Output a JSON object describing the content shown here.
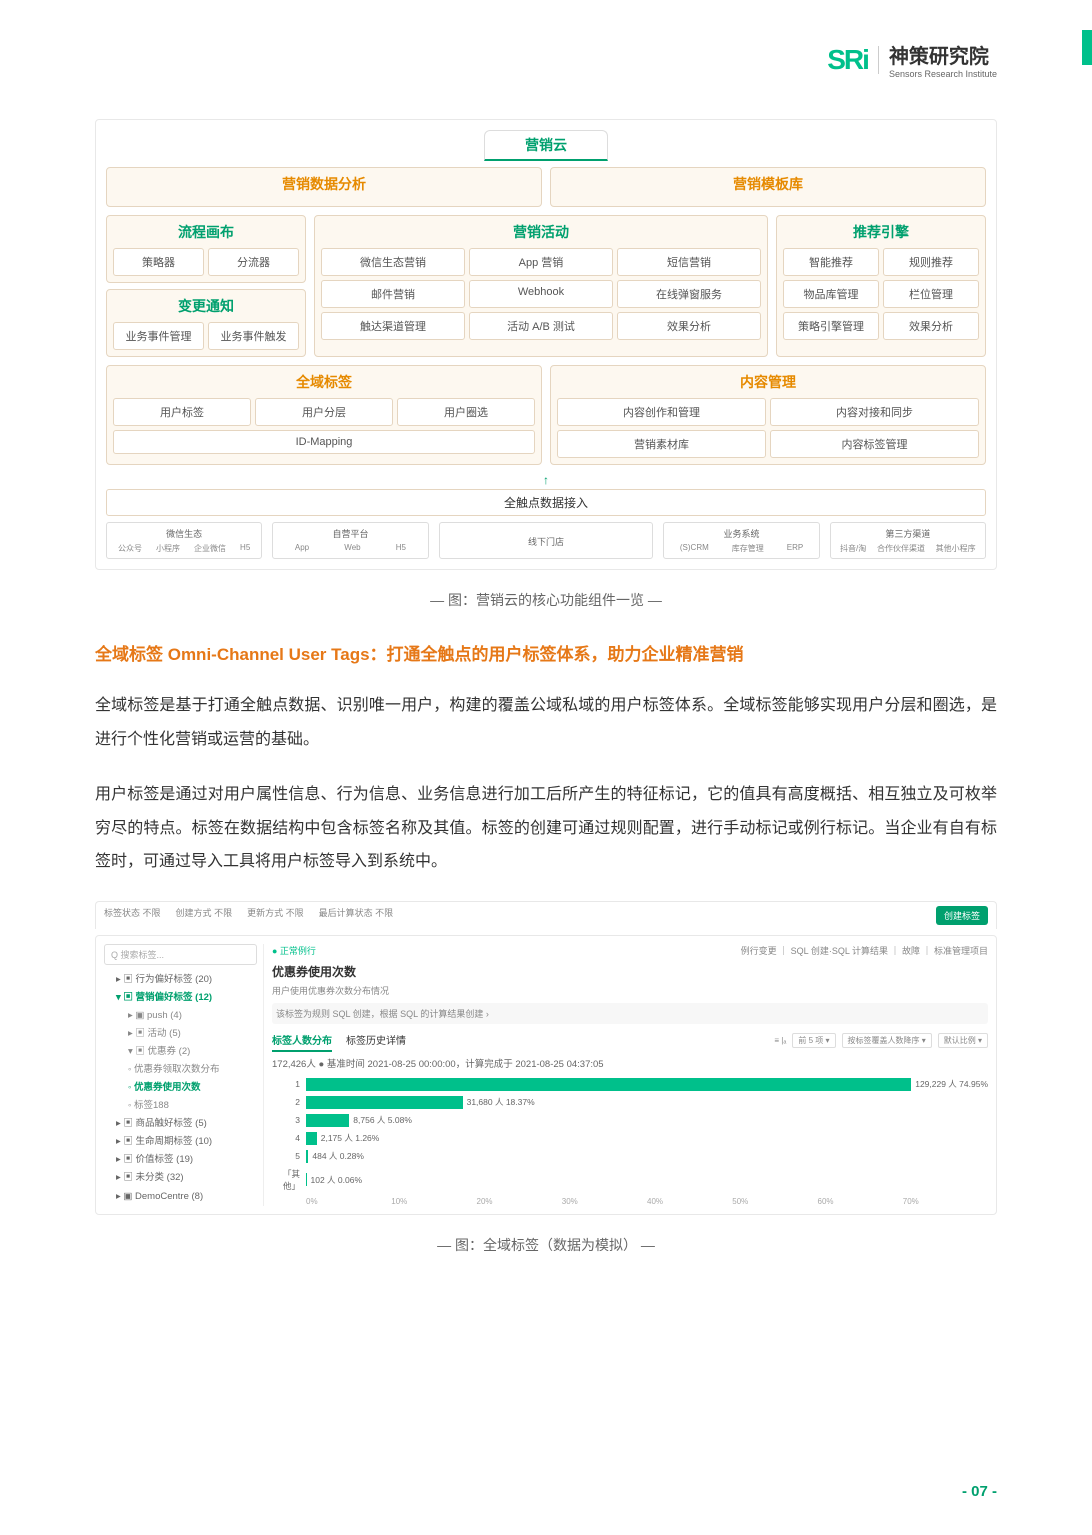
{
  "header": {
    "logo_mark": "SRi",
    "logo_cn": "神策研究院",
    "logo_en": "Sensors Research Institute"
  },
  "diagram": {
    "top_tab": "营销云",
    "tabs": [
      "营销数据分析",
      "营销模板库"
    ],
    "panels": {
      "flow": {
        "title": "流程画布",
        "cells": [
          "策略器",
          "分流器"
        ]
      },
      "change": {
        "title": "变更通知",
        "cells": [
          "业务事件管理",
          "业务事件触发"
        ]
      },
      "activity": {
        "title": "营销活动",
        "cells": [
          "微信生态营销",
          "App 营销",
          "短信营销",
          "邮件营销",
          "Webhook",
          "在线弹窗服务",
          "触达渠道管理",
          "活动 A/B 测试",
          "效果分析"
        ]
      },
      "recommend": {
        "title": "推荐引擎",
        "cells": [
          "智能推荐",
          "规则推荐",
          "物品库管理",
          "栏位管理",
          "策略引擎管理",
          "效果分析"
        ]
      },
      "tags": {
        "title": "全域标签",
        "cells": [
          "用户标签",
          "用户分层",
          "用户圈选"
        ],
        "id_mapping": "ID-Mapping"
      },
      "content": {
        "title": "内容管理",
        "cells": [
          "内容创作和管理",
          "内容对接和同步",
          "营销素材库",
          "内容标签管理"
        ]
      }
    },
    "data_in": "全触点数据接入",
    "sources": {
      "wechat": {
        "title": "微信生态",
        "items": [
          "公众号",
          "小程序",
          "企业微信",
          "H5"
        ]
      },
      "self": {
        "title": "自营平台",
        "items": [
          "App",
          "Web",
          "H5"
        ]
      },
      "offline": {
        "title": "线下门店"
      },
      "biz": {
        "title": "业务系统",
        "items": [
          "(S)CRM",
          "库存管理",
          "ERP"
        ]
      },
      "third": {
        "title": "第三方渠道",
        "items": [
          "抖音/淘",
          "合作伙伴渠道",
          "其他小程序"
        ]
      }
    },
    "caption": "—  图：营销云的核心功能组件一览  —"
  },
  "section": {
    "title": "全域标签 Omni-Channel User Tags：打通全触点的用户标签体系，助力企业精准营销",
    "p1": "全域标签是基于打通全触点数据、识别唯一用户，构建的覆盖公域私域的用户标签体系。全域标签能够实现用户分层和圈选，是进行个性化营销或运营的基础。",
    "p2": "用户标签是通过对用户属性信息、行为信息、业务信息进行加工后所产生的特征标记，它的值具有高度概括、相互独立及可枚举穷尽的特点。标签在数据结构中包含标签名称及其值。标签的创建可通过规则配置，进行手动标记或例行标记。当企业有自有标签时，可通过导入工具将用户标签导入到系统中。"
  },
  "shot": {
    "filters": {
      "status_label": "标签状态",
      "status_val": "不限",
      "create_label": "创建方式",
      "create_val": "不限",
      "update_label": "更新方式",
      "update_val": "不限",
      "calc_label": "最后计算状态",
      "calc_val": "不限"
    },
    "new_btn": "创建标签",
    "search": "Q 搜索标签...",
    "tree": [
      {
        "txt": "▸ ▣ 行为偏好标签 (20)",
        "cls": ""
      },
      {
        "txt": "▾ ▣ 营销偏好标签 (12)",
        "cls": "sel"
      },
      {
        "txt": "▸ ▣ push (4)",
        "cls": "l2"
      },
      {
        "txt": "▸ ▣ 活动 (5)",
        "cls": "l2"
      },
      {
        "txt": "▾ ▣ 优惠券 (2)",
        "cls": "l2"
      },
      {
        "txt": "◦ 优惠券领取次数分布",
        "cls": "l2"
      },
      {
        "txt": "◦ 优惠券使用次数",
        "cls": "l2 sel"
      },
      {
        "txt": "◦ 标签188",
        "cls": "l2"
      },
      {
        "txt": "▸ ▣ 商品触好标签 (5)",
        "cls": ""
      },
      {
        "txt": "▸ ▣ 生命周期标签 (10)",
        "cls": ""
      },
      {
        "txt": "▸ ▣ 价值标签 (19)",
        "cls": ""
      },
      {
        "txt": "▸ ▣ 未分类 (32)",
        "cls": ""
      },
      {
        "txt": "▸ ▣ DemoCentre (8)",
        "cls": ""
      }
    ],
    "status": "● 正常例行",
    "right_actions": "例行变更 ｜ SQL 创建·SQL 计算结果 ｜ 故障 ｜ 标准管理项目",
    "name": "优惠券使用次数",
    "sub": "用户使用优惠券次数分布情况",
    "sql": "该标签为规则 SQL 创建，根据 SQL 的计算结果创建    ›",
    "tab1": "标签人数分布",
    "tab2": "标签历史详情",
    "opt_icons": "≡   |ₐ",
    "opt_a": "前 5 项 ▾",
    "opt_b": "按标签覆盖人数降序 ▾",
    "opt_c": "默认比例 ▾",
    "total": "172,426人 ● 基准时间 2021-08-25 00:00:00，计算完成于 2021-08-25 04:37:05",
    "bars": [
      {
        "label": "1",
        "pct": 74.95,
        "txt": "129,229 人 74.95%"
      },
      {
        "label": "2",
        "pct": 18.37,
        "txt": "31,680 人 18.37%"
      },
      {
        "label": "3",
        "pct": 5.08,
        "txt": "8,756 人 5.08%"
      },
      {
        "label": "4",
        "pct": 1.26,
        "txt": "2,175 人 1.26%"
      },
      {
        "label": "5",
        "pct": 0.28,
        "txt": "484 人 0.28%"
      },
      {
        "label": "「其他」",
        "pct": 0.06,
        "txt": "102 人 0.06%"
      }
    ],
    "axis": [
      "0%",
      "10%",
      "20%",
      "30%",
      "40%",
      "50%",
      "60%",
      "70%"
    ],
    "caption": "—  图：全域标签（数据为模拟）  —"
  },
  "page_num": "- 07 -",
  "colors": {
    "green": "#00a06e",
    "orange": "#e67817"
  }
}
